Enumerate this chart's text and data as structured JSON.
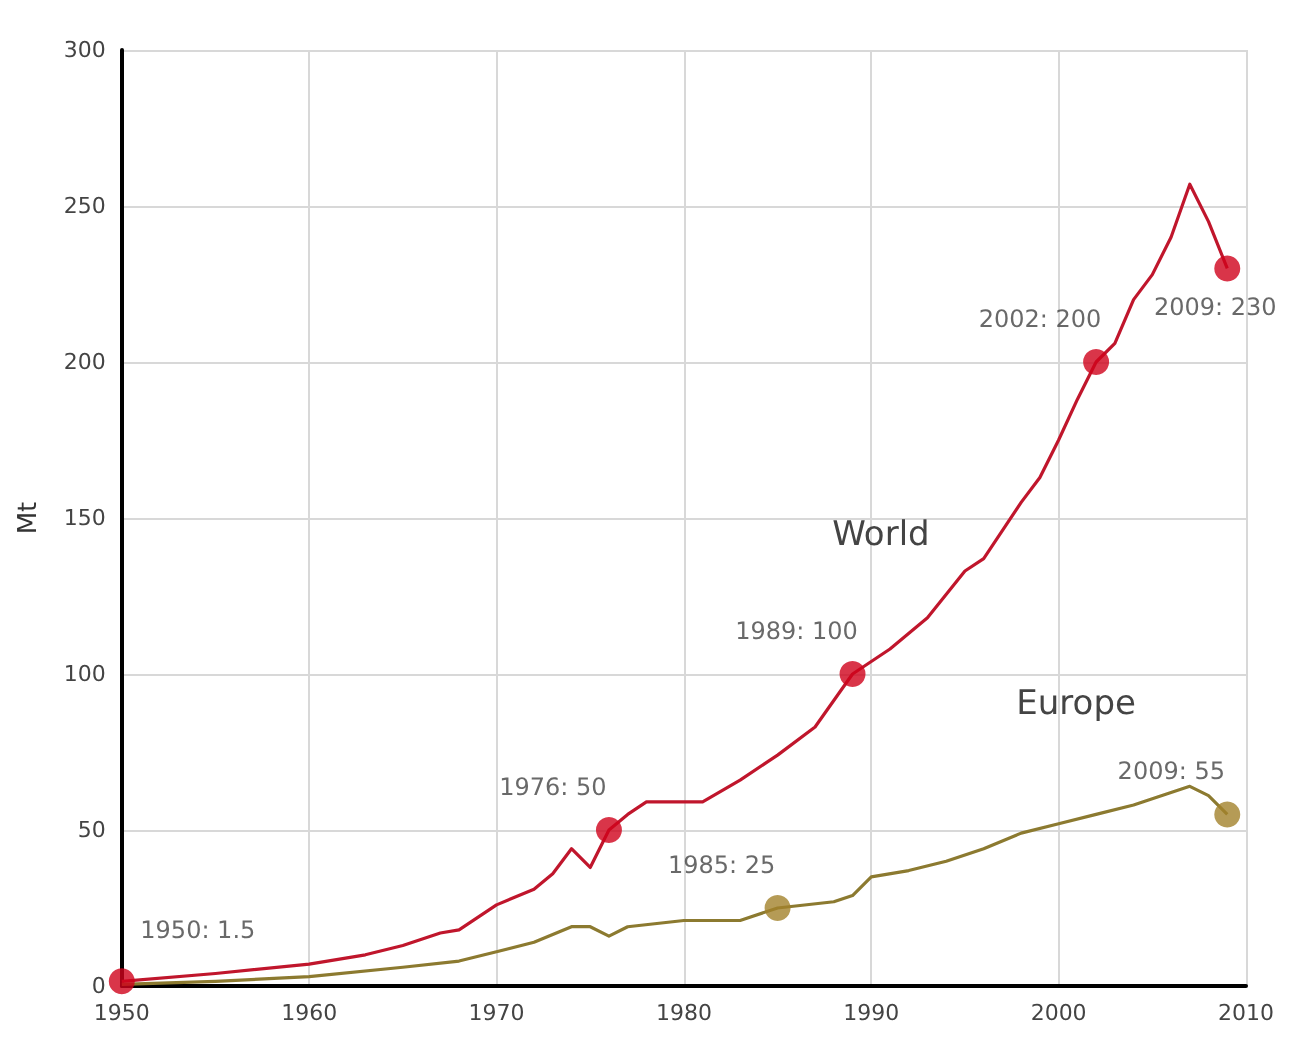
{
  "chart_data": {
    "type": "line",
    "ylabel": "Mt",
    "xlim": [
      1950,
      2010
    ],
    "xticks": [
      1950,
      1960,
      1970,
      1980,
      1990,
      2000,
      2010
    ],
    "ylim": [
      0,
      300
    ],
    "yticks": [
      0,
      50,
      100,
      150,
      200,
      250,
      300
    ],
    "grid": true,
    "line_style": "solid",
    "series": [
      {
        "name": "World",
        "color": "#c0162c",
        "marker": "none",
        "x": [
          1950,
          1955,
          1960,
          1963,
          1965,
          1967,
          1968,
          1970,
          1972,
          1973,
          1974,
          1975,
          1976,
          1977,
          1978,
          1980,
          1981,
          1983,
          1985,
          1987,
          1989,
          1991,
          1993,
          1995,
          1996,
          1998,
          1999,
          2000,
          2001,
          2002,
          2003,
          2004,
          2005,
          2006,
          2007,
          2008,
          2009
        ],
        "values": [
          1.5,
          4,
          7,
          10,
          13,
          17,
          18,
          26,
          31,
          36,
          44,
          38,
          50,
          55,
          59,
          59,
          59,
          66,
          74,
          83,
          100,
          108,
          118,
          133,
          137,
          155,
          163,
          175,
          188,
          200,
          206,
          220,
          228,
          240,
          257,
          245,
          230
        ]
      },
      {
        "name": "Europe",
        "color": "#8c7a30",
        "marker": "none",
        "x": [
          1950,
          1955,
          1960,
          1965,
          1968,
          1970,
          1972,
          1974,
          1975,
          1976,
          1977,
          1980,
          1983,
          1985,
          1988,
          1989,
          1990,
          1992,
          1994,
          1996,
          1998,
          2000,
          2002,
          2004,
          2006,
          2007,
          2008,
          2009
        ],
        "values": [
          0.5,
          1.5,
          3,
          6,
          8,
          11,
          14,
          19,
          19,
          16,
          19,
          21,
          21,
          25,
          27,
          29,
          35,
          37,
          40,
          44,
          49,
          52,
          55,
          58,
          62,
          64,
          61,
          55
        ]
      },
      {
        "type": "scatter",
        "color": "#d0021b",
        "marker": "circle",
        "x": [
          1950,
          1976,
          1989,
          2002,
          2009
        ],
        "values": [
          1.5,
          50,
          100,
          200,
          230
        ],
        "value_labels": [
          "1950: 1.5",
          "1976: 50",
          "1989: 100",
          "2002: 200",
          "2009: 230"
        ]
      },
      {
        "type": "scatter",
        "color": "#a3822c",
        "marker": "circle",
        "x": [
          1985,
          2009
        ],
        "values": [
          25,
          55
        ],
        "value_labels": [
          "1985: 25",
          "2009: 55"
        ]
      }
    ]
  }
}
